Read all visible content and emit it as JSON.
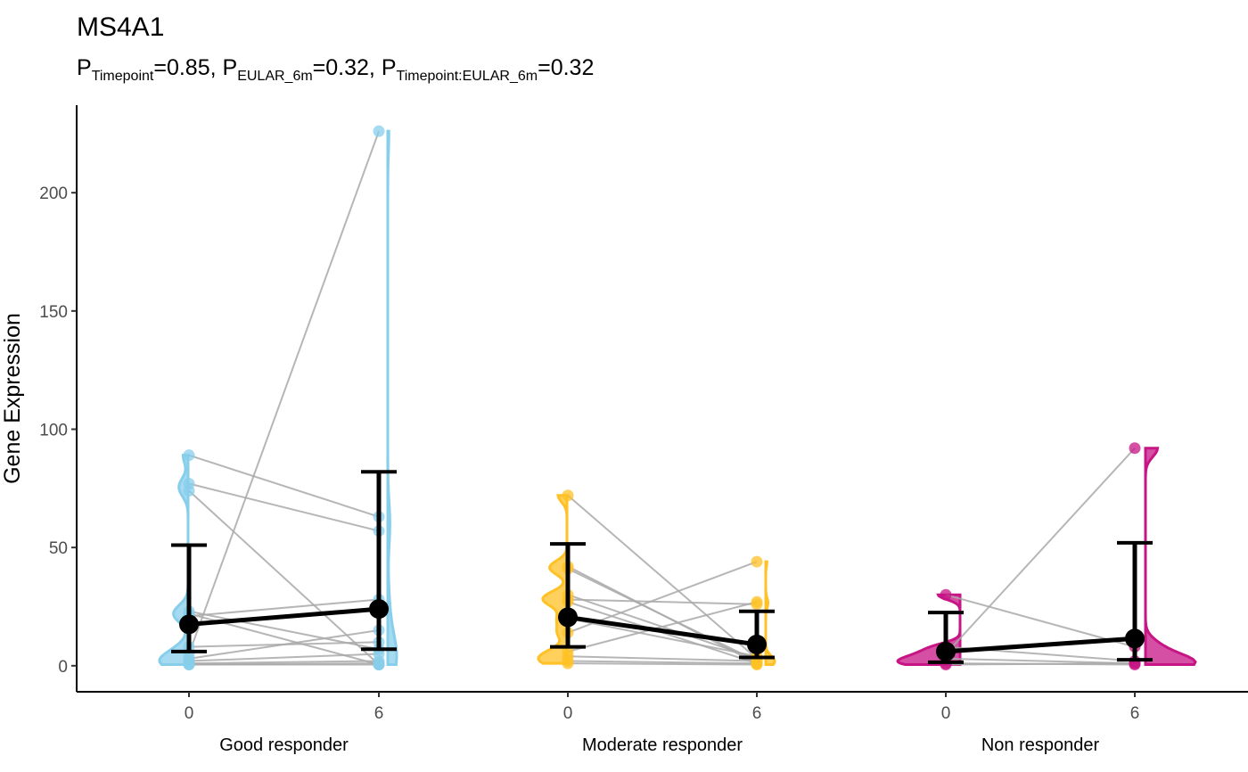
{
  "title": "MS4A1",
  "subtitle": {
    "parts": [
      {
        "p": "P",
        "sub": "Timepoint",
        "val": "=0.85, "
      },
      {
        "p": "P",
        "sub": "EULAR_6m",
        "val": "=0.32, "
      },
      {
        "p": "P",
        "sub": "Timepoint:EULAR_6m",
        "val": "=0.32"
      }
    ]
  },
  "colors": {
    "good": "#87CEEB",
    "moderate": "#FFC125",
    "non": "#C71585",
    "pair_line": "#A9A9A9",
    "summary": "#000000"
  },
  "chart_data": {
    "type": "scatter",
    "ylabel": "Gene Expression",
    "xlabel": "",
    "ylim": [
      -11,
      237
    ],
    "yticks": [
      0,
      50,
      100,
      150,
      200
    ],
    "x_ticks": [
      "0",
      "6",
      "0",
      "6",
      "0",
      "6"
    ],
    "groups": [
      {
        "name": "Good responder",
        "color_key": "good",
        "timepoints": [
          0,
          6
        ],
        "summary": [
          {
            "timepoint": 0,
            "mean": 17.5,
            "lower": 6,
            "upper": 51
          },
          {
            "timepoint": 6,
            "mean": 24,
            "lower": 7,
            "upper": 82
          }
        ],
        "pairs": [
          [
            89,
            63
          ],
          [
            74,
            0.5
          ],
          [
            77,
            57
          ],
          [
            22,
            0.5
          ],
          [
            21,
            28
          ],
          [
            8,
            10
          ],
          [
            5,
            226
          ],
          [
            3,
            15
          ],
          [
            2,
            5
          ],
          [
            1,
            2
          ],
          [
            0.5,
            1
          ],
          [
            0.5,
            0.5
          ],
          [
            23,
            7
          ]
        ],
        "violin_side": "left"
      },
      {
        "name": "Moderate responder",
        "color_key": "moderate",
        "timepoints": [
          0,
          6
        ],
        "summary": [
          {
            "timepoint": 0,
            "mean": 20.5,
            "lower": 8,
            "upper": 51.5
          },
          {
            "timepoint": 6,
            "mean": 9,
            "lower": 3.5,
            "upper": 23
          }
        ],
        "pairs": [
          [
            72,
            3
          ],
          [
            42,
            1
          ],
          [
            41,
            2
          ],
          [
            30,
            3
          ],
          [
            28,
            26
          ],
          [
            27,
            1
          ],
          [
            20,
            4
          ],
          [
            14,
            44
          ],
          [
            6,
            27
          ],
          [
            4,
            2
          ],
          [
            2,
            1
          ],
          [
            1,
            0.5
          ]
        ],
        "violin_side": "left"
      },
      {
        "name": "Non responder",
        "color_key": "non",
        "timepoints": [
          0,
          6
        ],
        "summary": [
          {
            "timepoint": 0,
            "mean": 6,
            "lower": 1.5,
            "upper": 22.5
          },
          {
            "timepoint": 6,
            "mean": 11.5,
            "lower": 2.5,
            "upper": 52
          }
        ],
        "pairs": [
          [
            30,
            8
          ],
          [
            8,
            2
          ],
          [
            5,
            92
          ],
          [
            3,
            1
          ],
          [
            1,
            0.5
          ],
          [
            0.5,
            1
          ]
        ],
        "violin_side": "right"
      }
    ]
  }
}
